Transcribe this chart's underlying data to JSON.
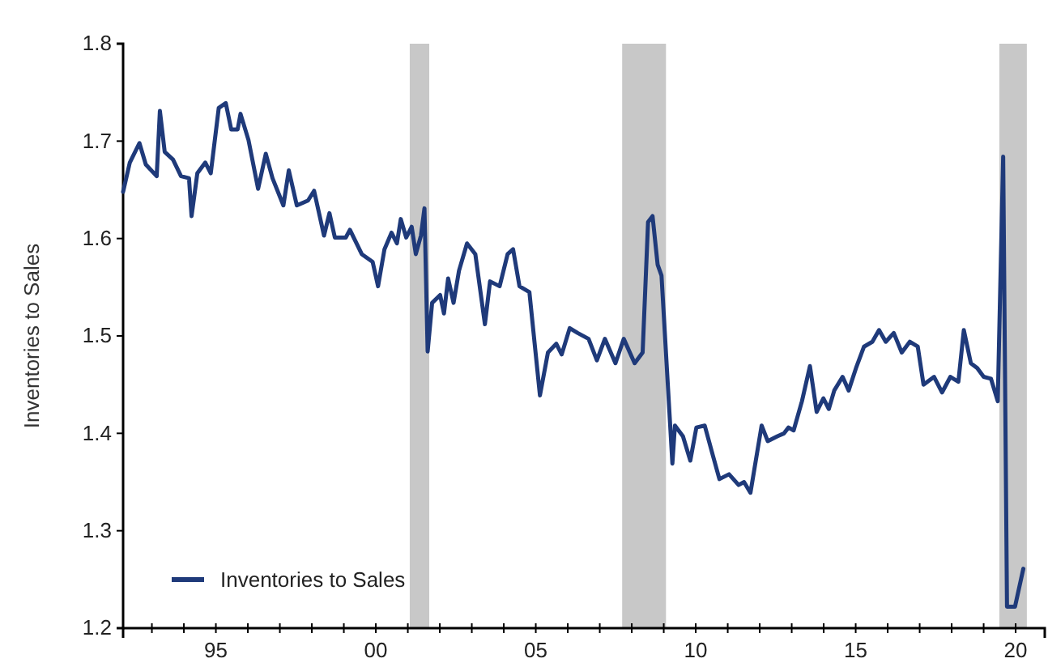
{
  "chart_data": {
    "type": "line",
    "ylabel": "Inventories to Sales",
    "xlim": [
      1992.1,
      2020.91
    ],
    "ylim": [
      1.2,
      1.8
    ],
    "yticks": [
      1.2,
      1.3,
      1.4,
      1.5,
      1.6,
      1.7,
      1.8
    ],
    "xticks": [
      {
        "value": 1993,
        "label": null
      },
      {
        "value": 1994,
        "label": null
      },
      {
        "value": 1995,
        "label": "95"
      },
      {
        "value": 1996,
        "label": null
      },
      {
        "value": 1997,
        "label": null
      },
      {
        "value": 1998,
        "label": null
      },
      {
        "value": 1999,
        "label": null
      },
      {
        "value": 2000,
        "label": "00"
      },
      {
        "value": 2001,
        "label": null
      },
      {
        "value": 2002,
        "label": null
      },
      {
        "value": 2003,
        "label": null
      },
      {
        "value": 2004,
        "label": null
      },
      {
        "value": 2005,
        "label": "05"
      },
      {
        "value": 2006,
        "label": null
      },
      {
        "value": 2007,
        "label": null
      },
      {
        "value": 2008,
        "label": null
      },
      {
        "value": 2009,
        "label": null
      },
      {
        "value": 2010,
        "label": "10"
      },
      {
        "value": 2011,
        "label": null
      },
      {
        "value": 2012,
        "label": null
      },
      {
        "value": 2013,
        "label": null
      },
      {
        "value": 2014,
        "label": null
      },
      {
        "value": 2015,
        "label": "15"
      },
      {
        "value": 2016,
        "label": null
      },
      {
        "value": 2017,
        "label": null
      },
      {
        "value": 2018,
        "label": null
      },
      {
        "value": 2019,
        "label": null
      },
      {
        "value": 2020,
        "label": "20"
      }
    ],
    "bands": [
      {
        "axis": "x",
        "from": 2001.06,
        "to": 2001.67,
        "color": "#c8c8c8"
      },
      {
        "axis": "x",
        "from": 2007.7,
        "to": 2009.07,
        "color": "#c8c8c8"
      },
      {
        "axis": "x",
        "from": 2019.49,
        "to": 2020.35,
        "color": "#c8c8c8"
      }
    ],
    "legend": "bottom left",
    "grid": false,
    "series": [
      {
        "name": "Inventories to Sales",
        "color": "#1f3a7a",
        "x": [
          1992.1,
          1992.31,
          1992.61,
          1992.81,
          1993.15,
          1993.25,
          1993.4,
          1993.66,
          1993.91,
          1994.16,
          1994.24,
          1994.42,
          1994.67,
          1994.84,
          1995.09,
          1995.31,
          1995.48,
          1995.68,
          1995.77,
          1996.02,
          1996.32,
          1996.56,
          1996.77,
          1997.11,
          1997.28,
          1997.53,
          1997.88,
          1998.07,
          1998.38,
          1998.55,
          1998.72,
          1999.06,
          1999.19,
          1999.56,
          1999.9,
          2000.07,
          2000.27,
          2000.49,
          2000.66,
          2000.78,
          2000.95,
          2001.12,
          2001.25,
          2001.41,
          2001.52,
          2001.62,
          2001.76,
          2002.01,
          2002.13,
          2002.26,
          2002.43,
          2002.6,
          2002.85,
          2003.11,
          2003.41,
          2003.57,
          2003.87,
          2004.12,
          2004.29,
          2004.49,
          2004.8,
          2005.13,
          2005.38,
          2005.64,
          2005.81,
          2006.06,
          2006.31,
          2006.65,
          2006.91,
          2007.16,
          2007.49,
          2007.75,
          2008.09,
          2008.34,
          2008.51,
          2008.65,
          2008.81,
          2008.93,
          2009.27,
          2009.35,
          2009.6,
          2009.83,
          2010.02,
          2010.28,
          2010.53,
          2010.74,
          2011.04,
          2011.34,
          2011.51,
          2011.71,
          2012.06,
          2012.25,
          2012.55,
          2012.76,
          2012.9,
          2013.06,
          2013.32,
          2013.57,
          2013.78,
          2013.99,
          2014.16,
          2014.33,
          2014.59,
          2014.78,
          2015.01,
          2015.26,
          2015.52,
          2015.73,
          2015.94,
          2016.19,
          2016.44,
          2016.69,
          2016.94,
          2017.12,
          2017.45,
          2017.7,
          2017.96,
          2018.21,
          2018.38,
          2018.6,
          2018.8,
          2019.0,
          2019.23,
          2019.44,
          2019.61,
          2019.73,
          2019.98,
          2020.24
        ],
        "values": [
          1.648,
          1.678,
          1.698,
          1.676,
          1.664,
          1.731,
          1.689,
          1.681,
          1.664,
          1.662,
          1.623,
          1.667,
          1.678,
          1.667,
          1.734,
          1.739,
          1.712,
          1.712,
          1.728,
          1.701,
          1.651,
          1.687,
          1.662,
          1.634,
          1.67,
          1.634,
          1.639,
          1.649,
          1.603,
          1.626,
          1.601,
          1.601,
          1.609,
          1.584,
          1.576,
          1.551,
          1.589,
          1.606,
          1.595,
          1.62,
          1.601,
          1.612,
          1.584,
          1.603,
          1.631,
          1.484,
          1.534,
          1.542,
          1.523,
          1.559,
          1.534,
          1.567,
          1.595,
          1.584,
          1.512,
          1.556,
          1.551,
          1.584,
          1.589,
          1.551,
          1.545,
          1.439,
          1.483,
          1.492,
          1.481,
          1.508,
          1.503,
          1.497,
          1.475,
          1.497,
          1.472,
          1.497,
          1.472,
          1.483,
          1.617,
          1.623,
          1.573,
          1.562,
          1.369,
          1.408,
          1.397,
          1.372,
          1.406,
          1.408,
          1.378,
          1.353,
          1.358,
          1.347,
          1.35,
          1.339,
          1.408,
          1.392,
          1.397,
          1.4,
          1.406,
          1.403,
          1.433,
          1.469,
          1.422,
          1.436,
          1.425,
          1.444,
          1.458,
          1.444,
          1.467,
          1.489,
          1.494,
          1.506,
          1.494,
          1.503,
          1.483,
          1.494,
          1.489,
          1.45,
          1.458,
          1.442,
          1.458,
          1.453,
          1.506,
          1.472,
          1.467,
          1.458,
          1.456,
          1.433,
          1.684,
          1.222,
          1.222,
          1.261
        ]
      }
    ]
  }
}
